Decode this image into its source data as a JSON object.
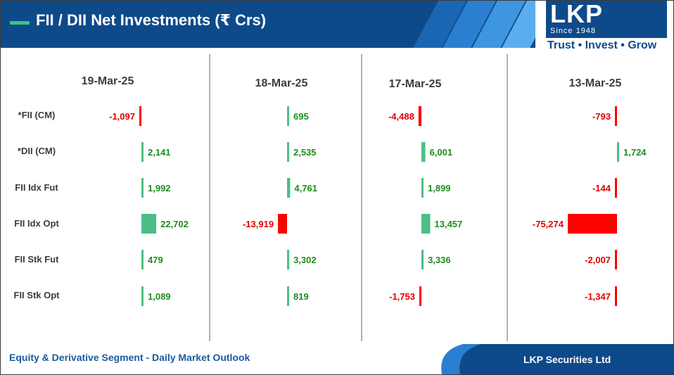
{
  "header": {
    "title": "FII / DII Net Investments (₹ Crs)",
    "logo": "LKP",
    "logo_since": "Since 1948",
    "tagline": "Trust • Invest • Grow"
  },
  "footer": {
    "left_text": "Equity & Derivative Segment - Daily Market Outlook",
    "right_text": "LKP Securities Ltd"
  },
  "colors": {
    "positive_bar": "#4cbf86",
    "negative_bar": "#ff0000",
    "positive_text": "#1e8c1e",
    "negative_text": "#e00000",
    "brand_blue": "#0e4a8a"
  },
  "chart_data": {
    "type": "bar",
    "title": "FII / DII Net Investments (₹ Crs)",
    "categories": [
      "*FII (CM)",
      "*DII (CM)",
      "FII Idx Fut",
      "FII Idx Opt",
      "FII Stk Fut",
      "FII Stk Opt"
    ],
    "series": [
      {
        "name": "19-Mar-25",
        "values": [
          -1097,
          2141,
          1992,
          22702,
          479,
          1089
        ],
        "labels": [
          "-1,097",
          "2,141",
          "1,992",
          "22,702",
          "479",
          "1,089"
        ]
      },
      {
        "name": "18-Mar-25",
        "values": [
          695,
          2535,
          4761,
          -13919,
          3302,
          819
        ],
        "labels": [
          "695",
          "2,535",
          "4,761",
          "-13,919",
          "3,302",
          "819"
        ]
      },
      {
        "name": "17-Mar-25",
        "values": [
          -4488,
          6001,
          1899,
          13457,
          3336,
          -1753
        ],
        "labels": [
          "-4,488",
          "6,001",
          "1,899",
          "13,457",
          "3,336",
          "-1,753"
        ]
      },
      {
        "name": "13-Mar-25",
        "values": [
          -793,
          1724,
          -144,
          -75274,
          -2007,
          -1347
        ],
        "labels": [
          "-793",
          "1,724",
          "-144",
          "-75,274",
          "-2,007",
          "-1,347"
        ]
      }
    ]
  }
}
